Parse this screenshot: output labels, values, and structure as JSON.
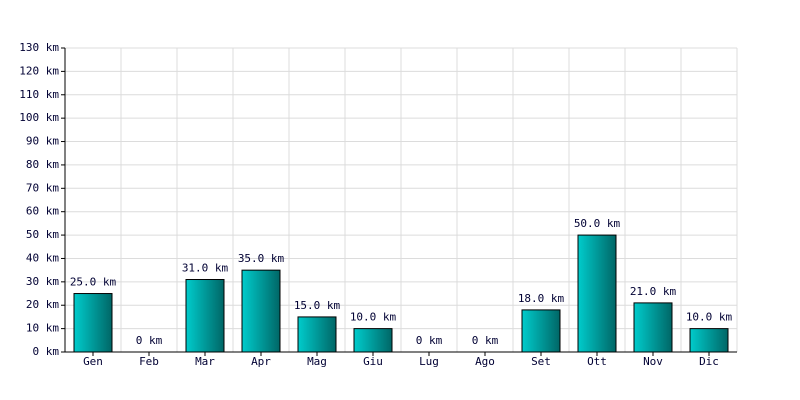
{
  "chart_data": {
    "type": "bar",
    "categories": [
      "Gen",
      "Feb",
      "Mar",
      "Apr",
      "Mag",
      "Giu",
      "Lug",
      "Ago",
      "Set",
      "Ott",
      "Nov",
      "Dic"
    ],
    "values": [
      25,
      0,
      31,
      35,
      15,
      10,
      0,
      0,
      18,
      50,
      21,
      10
    ],
    "value_labels": [
      "25.0 km",
      "0 km",
      "31.0 km",
      "35.0 km",
      "15.0 km",
      "10.0 km",
      "0 km",
      "0 km",
      "18.0 km",
      "50.0 km",
      "21.0 km",
      "10.0 km"
    ],
    "color": "#00cccc",
    "ylim": [
      0,
      130
    ],
    "yticks": [
      {
        "value": 0,
        "label": "0 km"
      },
      {
        "value": 10,
        "label": "10 km"
      },
      {
        "value": 20,
        "label": "20 km"
      },
      {
        "value": 30,
        "label": "30 km"
      },
      {
        "value": 40,
        "label": "40 km"
      },
      {
        "value": 50,
        "label": "50 km"
      },
      {
        "value": 60,
        "label": "60 km"
      },
      {
        "value": 70,
        "label": "70 km"
      },
      {
        "value": 80,
        "label": "80 km"
      },
      {
        "value": 90,
        "label": "90 km"
      },
      {
        "value": 100,
        "label": "100 km"
      },
      {
        "value": 110,
        "label": "110 km"
      },
      {
        "value": 120,
        "label": "120 km"
      },
      {
        "value": 130,
        "label": "130 km"
      }
    ],
    "grid": true
  }
}
